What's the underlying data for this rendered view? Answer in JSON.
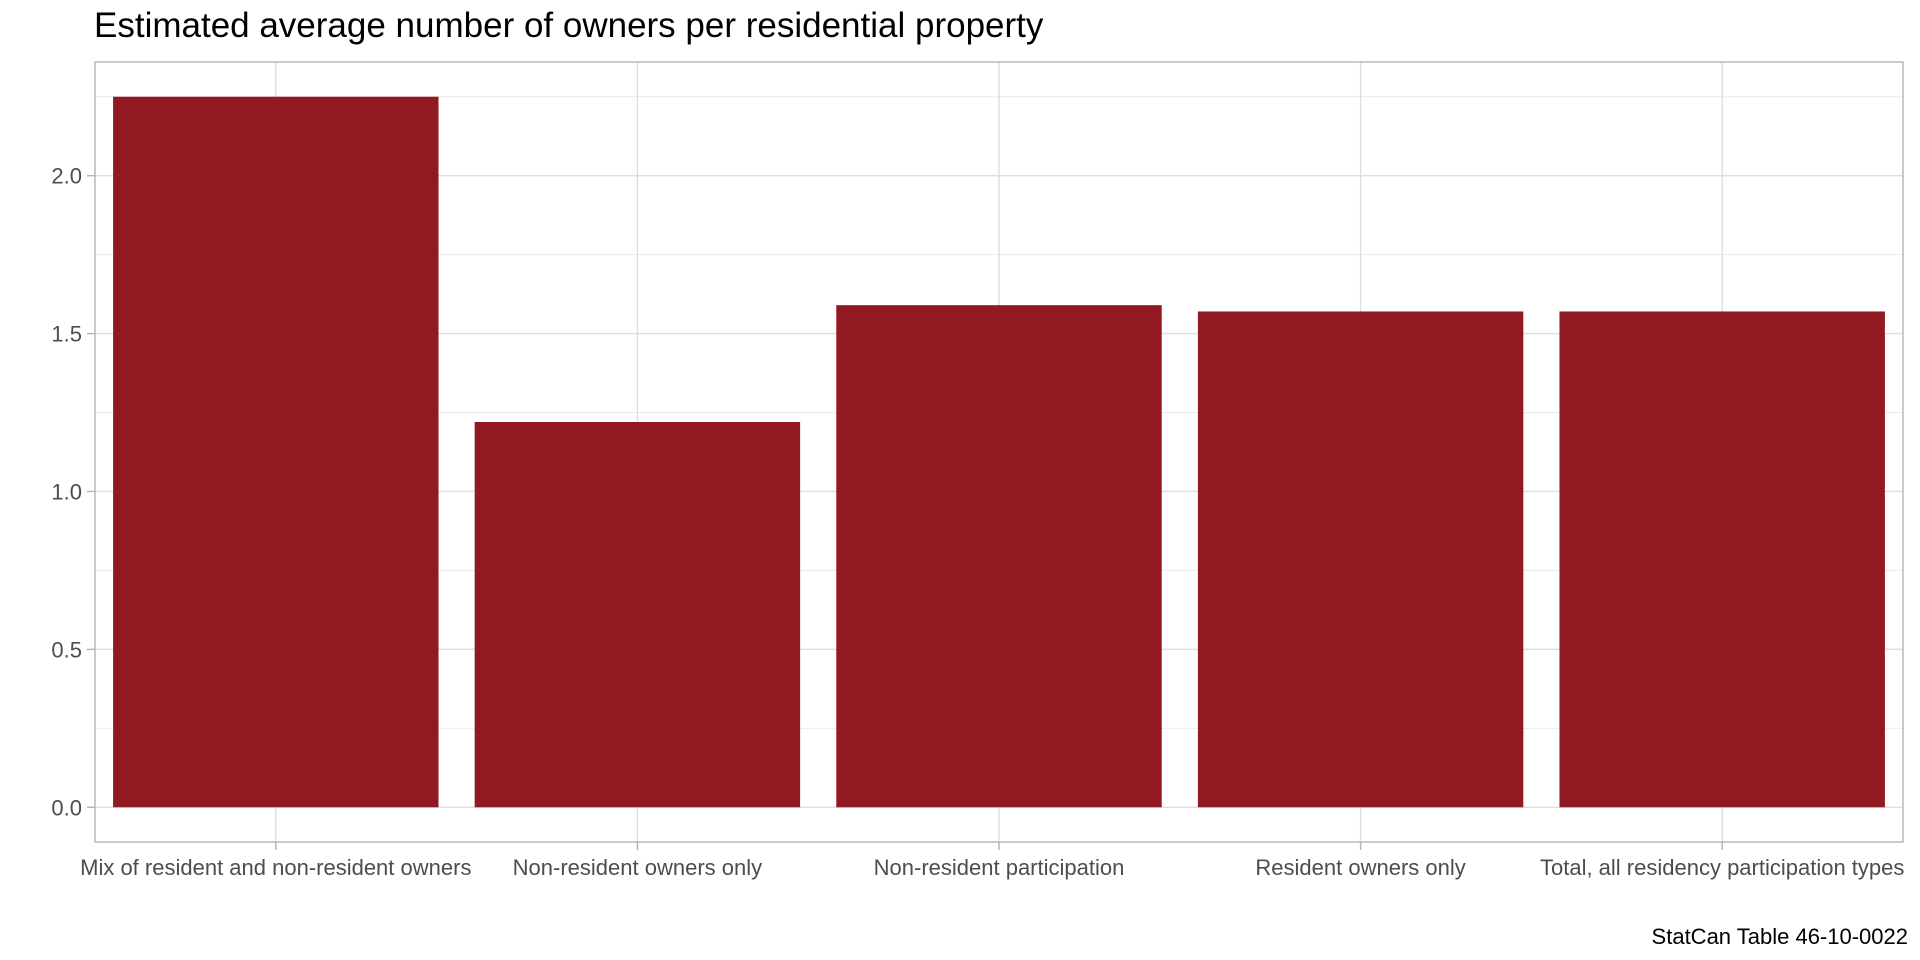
{
  "title": "Estimated average number of owners per residential property",
  "caption": "StatCan Table 46-10-0022",
  "chart_data": {
    "type": "bar",
    "title": "Estimated average number of owners per residential property",
    "xlabel": "",
    "ylabel": "",
    "categories": [
      "Mix of resident and non-resident owners",
      "Non-resident owners only",
      "Non-resident participation",
      "Resident owners only",
      "Total, all residency participation types"
    ],
    "values": [
      2.25,
      1.22,
      1.59,
      1.57,
      1.57
    ],
    "ylim": [
      -0.11,
      2.36
    ],
    "y_ticks": [
      "0.0",
      "0.5",
      "1.0",
      "1.5",
      "2.0"
    ],
    "grid": true,
    "legend": "none",
    "bar_color": "#911a22"
  }
}
